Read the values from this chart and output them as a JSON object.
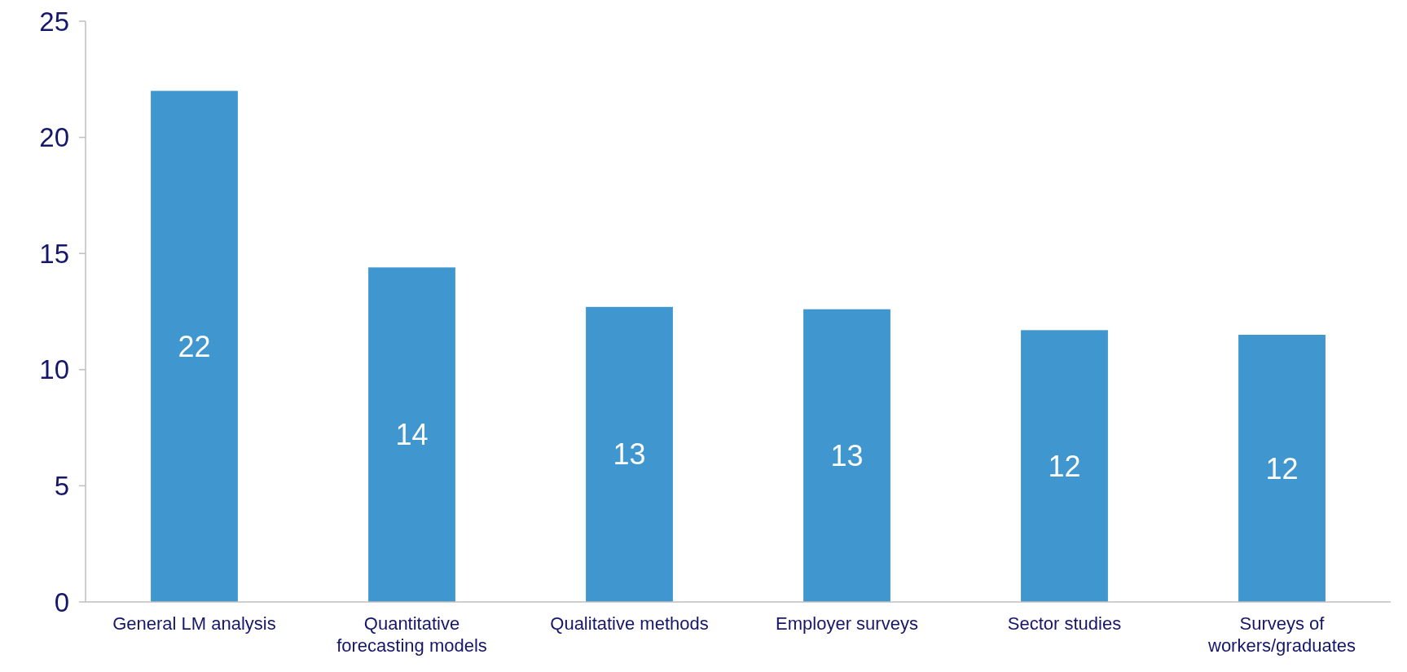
{
  "chart_data": {
    "type": "bar",
    "categories": [
      "General LM analysis",
      "Quantitative forecasting models",
      "Qualitative methods",
      "Employer surveys",
      "Sector studies",
      "Surveys of workers/graduates"
    ],
    "values": [
      22,
      14.4,
      12.7,
      12.6,
      11.7,
      11.5
    ],
    "value_labels": [
      "22",
      "14",
      "13",
      "13",
      "12",
      "12"
    ],
    "color": "#4096cf",
    "ylim": [
      0,
      25
    ],
    "yticks": [
      0,
      5,
      10,
      15,
      20,
      25
    ],
    "grid": false
  }
}
